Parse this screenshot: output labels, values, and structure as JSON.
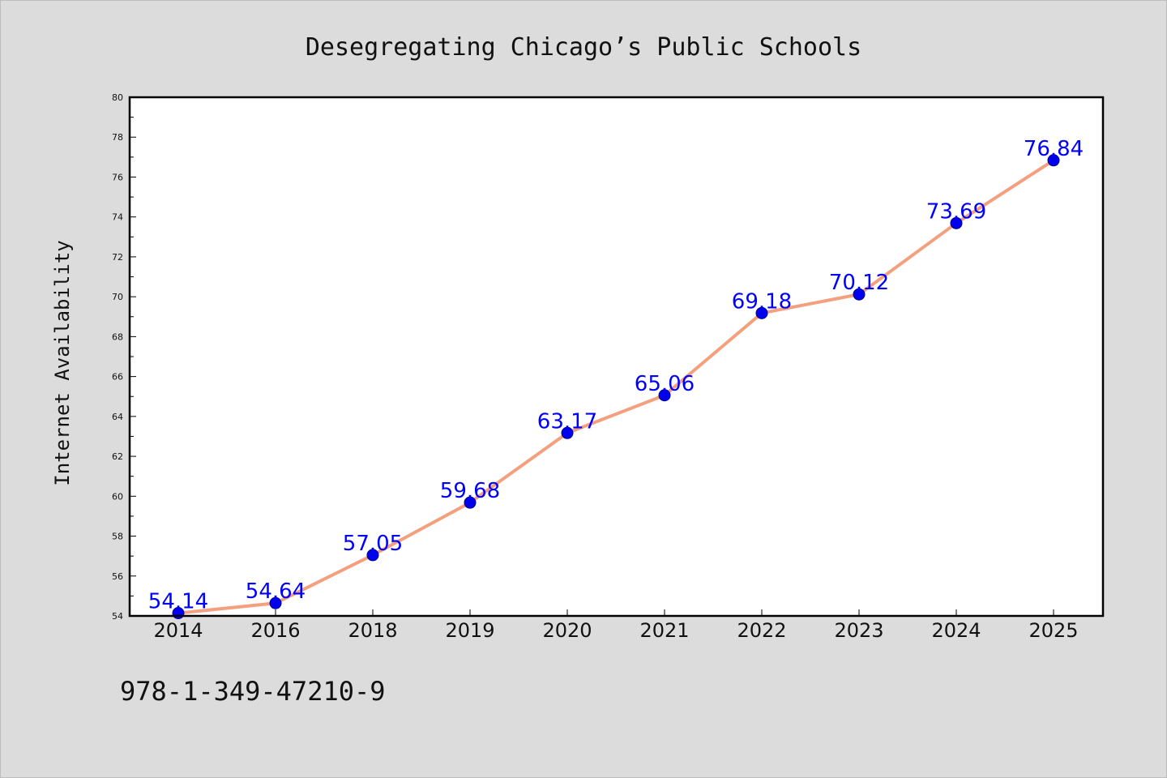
{
  "chart_data": {
    "type": "line",
    "title": "Desegregating Chicago’s Public Schools",
    "xlabel": "",
    "ylabel": "Internet Availability",
    "categories": [
      "2014",
      "2016",
      "2018",
      "2019",
      "2020",
      "2021",
      "2022",
      "2023",
      "2024",
      "2025"
    ],
    "series": [
      {
        "values": [
          54.14,
          54.64,
          57.05,
          59.68,
          63.17,
          65.06,
          69.18,
          70.12,
          73.69,
          76.84
        ],
        "value_labels": [
          "54.14",
          "54.64",
          "57.05",
          "59.68",
          "63.17",
          "65.06",
          "69.18",
          "70.12",
          "73.69",
          "76.84"
        ]
      }
    ],
    "ylim": [
      54,
      80
    ],
    "yticks": [
      "54",
      "56",
      "58",
      "60",
      "62",
      "64",
      "66",
      "68",
      "70",
      "72",
      "74",
      "76",
      "78",
      "80"
    ],
    "grid": false,
    "legend": "none",
    "colors": {
      "line": "#f4a07f",
      "marker": "#0000ee",
      "marker_edge": "#00008b",
      "value_label": "#0000ff",
      "plot_background": "#ffffff",
      "page_background": "#dcdcdc"
    }
  },
  "footer": {
    "isbn": "978-1-349-47210-9"
  }
}
